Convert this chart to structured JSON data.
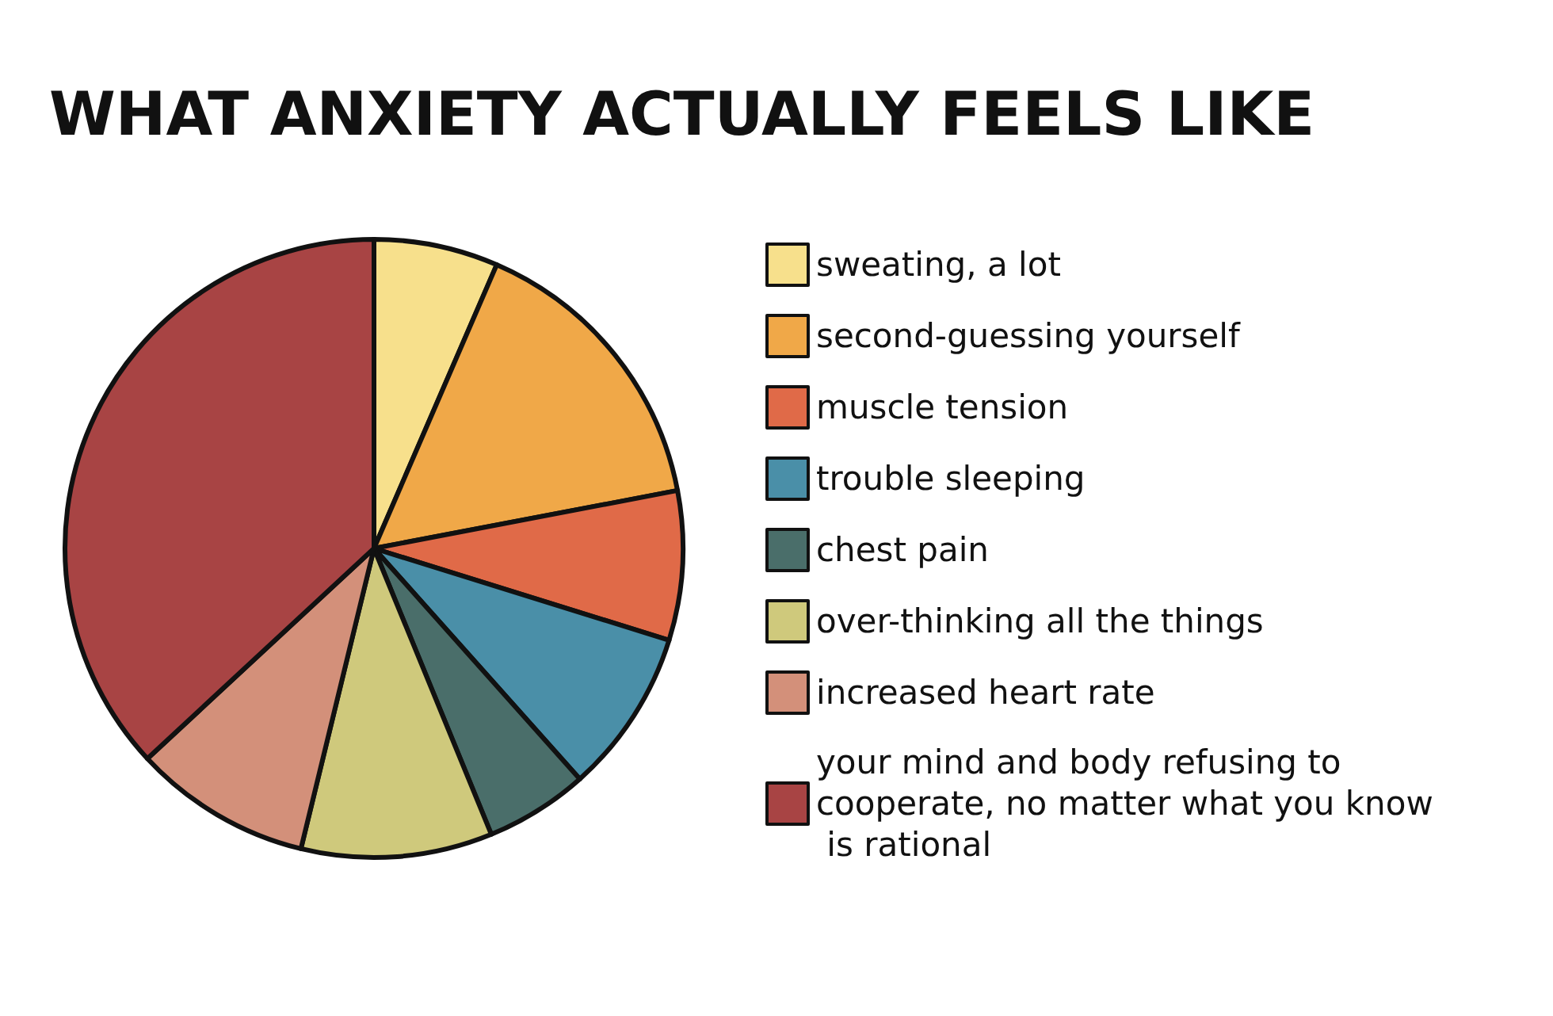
{
  "chart_data": {
    "type": "pie",
    "title": "WHAT ANXIETY ACTUALLY FEELS LIKE",
    "categories": [
      "sweating, a lot",
      "second-guessing yourself",
      "muscle tension",
      "trouble sleeping",
      "chest pain",
      "over-thinking all the things",
      "increased heart rate",
      "your mind and body refusing to cooperate, no matter what you know is rational"
    ],
    "values": [
      6.5,
      15.5,
      7.8,
      8.6,
      5.4,
      10,
      9.3,
      36.9
    ],
    "colors": [
      "#f7e08c",
      "#f0a848",
      "#e06a48",
      "#4a8fa8",
      "#4a6e6a",
      "#cfc97c",
      "#d3907a",
      "#a84444"
    ],
    "legend": "right"
  }
}
